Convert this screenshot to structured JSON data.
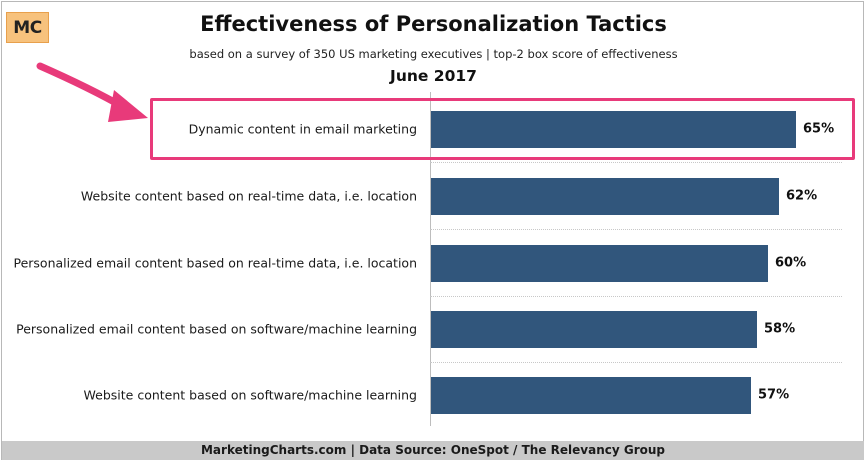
{
  "logo": {
    "text": "MC"
  },
  "chart_data": {
    "type": "bar",
    "orientation": "horizontal",
    "title": "Effectiveness of Personalization Tactics",
    "subtitle": "based on a survey of 350 US marketing executives | top-2 box score of effectiveness",
    "date": "June 2017",
    "categories": [
      "Dynamic content in email marketing",
      "Website content based on real-time data, i.e. location",
      "Personalized email content based on real-time data, i.e. location",
      "Personalized email content based on software/machine learning",
      "Website content based on software/machine learning"
    ],
    "values": [
      65,
      62,
      60,
      58,
      57
    ],
    "value_labels": [
      "65%",
      "62%",
      "60%",
      "58%",
      "57%"
    ],
    "xlim": [
      0,
      65
    ],
    "highlighted_category": "Dynamic content in email marketing",
    "bar_color": "#31567c",
    "highlight_color": "#e83a7a"
  },
  "footer": {
    "text": "MarketingCharts.com | Data Source: OneSpot / The Relevancy Group"
  }
}
